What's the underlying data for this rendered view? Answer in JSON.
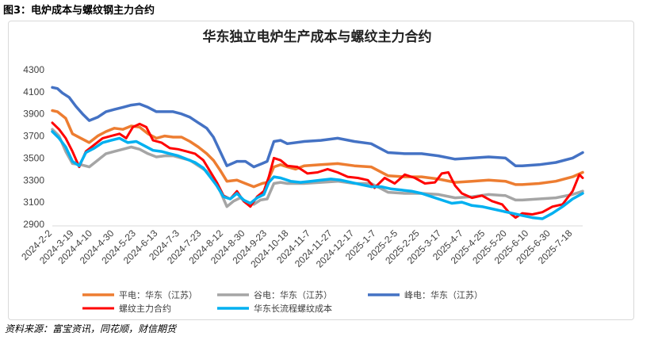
{
  "figure": {
    "caption": "图3：电炉成本与螺纹钢主力合约",
    "source": "资料来源：富宝资讯，同花顺，财信期货"
  },
  "chart_data": {
    "type": "line",
    "title": "华东独立电炉生产成本与螺纹主力合约",
    "xlabel": "",
    "ylabel": "",
    "ylim": [
      2900,
      4300
    ],
    "yticks": [
      2900,
      3100,
      3300,
      3500,
      3700,
      3900,
      4100,
      4300
    ],
    "grid": false,
    "legend_position": "bottom",
    "x_tick_labels": [
      "2024-2-2",
      "2024-3-19",
      "2024-4-10",
      "2024-4-30",
      "2024-5-23",
      "2024-6-13",
      "2024-7-3",
      "2024-7-23",
      "2024-8-12",
      "2024-8-30",
      "2024-9-23",
      "2024-10-18",
      "2024-11-7",
      "2024-11-27",
      "2024-12-17",
      "2025-1-7",
      "2025-2-5",
      "2025-2-25",
      "2025-3-17",
      "2025-4-7",
      "2025-4-25",
      "2025-5-20",
      "2025-6-10",
      "2025-6-30",
      "2025-7-18"
    ],
    "x_tick_index": [
      0,
      13,
      24,
      37,
      50,
      63,
      76,
      89,
      102,
      115,
      128,
      141,
      154,
      167,
      180,
      193,
      206,
      219,
      232,
      245,
      258,
      271,
      284,
      297,
      310
    ],
    "x_count": 317,
    "series": [
      {
        "name": "平电：华东（江苏）",
        "color": "#ed7d31",
        "width": 3.5,
        "points": [
          [
            0,
            3930
          ],
          [
            3,
            3920
          ],
          [
            8,
            3860
          ],
          [
            12,
            3720
          ],
          [
            17,
            3680
          ],
          [
            22,
            3640
          ],
          [
            27,
            3700
          ],
          [
            32,
            3740
          ],
          [
            37,
            3770
          ],
          [
            42,
            3760
          ],
          [
            47,
            3790
          ],
          [
            52,
            3780
          ],
          [
            57,
            3720
          ],
          [
            62,
            3680
          ],
          [
            67,
            3700
          ],
          [
            72,
            3690
          ],
          [
            77,
            3690
          ],
          [
            82,
            3650
          ],
          [
            87,
            3600
          ],
          [
            92,
            3540
          ],
          [
            96,
            3480
          ],
          [
            100,
            3390
          ],
          [
            104,
            3290
          ],
          [
            110,
            3300
          ],
          [
            115,
            3270
          ],
          [
            120,
            3240
          ],
          [
            125,
            3270
          ],
          [
            128,
            3280
          ],
          [
            132,
            3420
          ],
          [
            136,
            3440
          ],
          [
            140,
            3420
          ],
          [
            145,
            3400
          ],
          [
            150,
            3430
          ],
          [
            160,
            3440
          ],
          [
            170,
            3450
          ],
          [
            180,
            3430
          ],
          [
            190,
            3420
          ],
          [
            200,
            3340
          ],
          [
            210,
            3330
          ],
          [
            220,
            3330
          ],
          [
            230,
            3310
          ],
          [
            240,
            3280
          ],
          [
            250,
            3290
          ],
          [
            260,
            3300
          ],
          [
            270,
            3290
          ],
          [
            276,
            3260
          ],
          [
            280,
            3260
          ],
          [
            290,
            3270
          ],
          [
            300,
            3290
          ],
          [
            310,
            3330
          ],
          [
            316,
            3370
          ]
        ]
      },
      {
        "name": "谷电：华东（江苏）",
        "color": "#a5a5a5",
        "width": 3.5,
        "points": [
          [
            0,
            3760
          ],
          [
            4,
            3700
          ],
          [
            8,
            3560
          ],
          [
            12,
            3450
          ],
          [
            17,
            3440
          ],
          [
            22,
            3420
          ],
          [
            27,
            3480
          ],
          [
            32,
            3540
          ],
          [
            37,
            3560
          ],
          [
            42,
            3580
          ],
          [
            47,
            3600
          ],
          [
            52,
            3580
          ],
          [
            57,
            3540
          ],
          [
            62,
            3510
          ],
          [
            67,
            3520
          ],
          [
            72,
            3520
          ],
          [
            77,
            3500
          ],
          [
            82,
            3480
          ],
          [
            87,
            3430
          ],
          [
            92,
            3380
          ],
          [
            96,
            3300
          ],
          [
            100,
            3200
          ],
          [
            104,
            3060
          ],
          [
            108,
            3110
          ],
          [
            112,
            3140
          ],
          [
            116,
            3100
          ],
          [
            120,
            3080
          ],
          [
            124,
            3120
          ],
          [
            128,
            3130
          ],
          [
            132,
            3270
          ],
          [
            136,
            3280
          ],
          [
            140,
            3270
          ],
          [
            150,
            3270
          ],
          [
            160,
            3280
          ],
          [
            170,
            3290
          ],
          [
            180,
            3270
          ],
          [
            190,
            3270
          ],
          [
            200,
            3190
          ],
          [
            210,
            3180
          ],
          [
            220,
            3180
          ],
          [
            230,
            3170
          ],
          [
            240,
            3140
          ],
          [
            250,
            3150
          ],
          [
            260,
            3170
          ],
          [
            270,
            3160
          ],
          [
            276,
            3120
          ],
          [
            280,
            3120
          ],
          [
            290,
            3130
          ],
          [
            300,
            3140
          ],
          [
            310,
            3170
          ],
          [
            316,
            3200
          ]
        ]
      },
      {
        "name": "峰电：华东（江苏）",
        "color": "#4472c4",
        "width": 3.5,
        "points": [
          [
            0,
            4140
          ],
          [
            3,
            4130
          ],
          [
            6,
            4090
          ],
          [
            10,
            4050
          ],
          [
            14,
            3970
          ],
          [
            18,
            3900
          ],
          [
            22,
            3840
          ],
          [
            27,
            3870
          ],
          [
            32,
            3920
          ],
          [
            37,
            3940
          ],
          [
            42,
            3960
          ],
          [
            47,
            3980
          ],
          [
            52,
            3990
          ],
          [
            57,
            3960
          ],
          [
            62,
            3920
          ],
          [
            67,
            3920
          ],
          [
            72,
            3920
          ],
          [
            77,
            3900
          ],
          [
            82,
            3870
          ],
          [
            87,
            3820
          ],
          [
            92,
            3770
          ],
          [
            96,
            3690
          ],
          [
            100,
            3560
          ],
          [
            104,
            3430
          ],
          [
            110,
            3470
          ],
          [
            115,
            3470
          ],
          [
            120,
            3420
          ],
          [
            125,
            3450
          ],
          [
            128,
            3470
          ],
          [
            132,
            3650
          ],
          [
            136,
            3660
          ],
          [
            140,
            3630
          ],
          [
            150,
            3650
          ],
          [
            160,
            3660
          ],
          [
            170,
            3680
          ],
          [
            180,
            3650
          ],
          [
            190,
            3630
          ],
          [
            200,
            3550
          ],
          [
            210,
            3540
          ],
          [
            220,
            3540
          ],
          [
            230,
            3520
          ],
          [
            240,
            3490
          ],
          [
            250,
            3500
          ],
          [
            260,
            3510
          ],
          [
            270,
            3500
          ],
          [
            276,
            3430
          ],
          [
            280,
            3430
          ],
          [
            290,
            3440
          ],
          [
            300,
            3460
          ],
          [
            310,
            3500
          ],
          [
            316,
            3550
          ]
        ]
      },
      {
        "name": "螺纹主力合约",
        "color": "#ff0000",
        "width": 3,
        "points": [
          [
            0,
            3820
          ],
          [
            4,
            3760
          ],
          [
            8,
            3680
          ],
          [
            12,
            3560
          ],
          [
            16,
            3420
          ],
          [
            20,
            3560
          ],
          [
            25,
            3620
          ],
          [
            30,
            3680
          ],
          [
            35,
            3700
          ],
          [
            40,
            3720
          ],
          [
            44,
            3680
          ],
          [
            48,
            3780
          ],
          [
            52,
            3810
          ],
          [
            56,
            3780
          ],
          [
            60,
            3660
          ],
          [
            65,
            3640
          ],
          [
            70,
            3590
          ],
          [
            75,
            3580
          ],
          [
            80,
            3560
          ],
          [
            85,
            3540
          ],
          [
            90,
            3480
          ],
          [
            94,
            3380
          ],
          [
            98,
            3280
          ],
          [
            102,
            3160
          ],
          [
            106,
            3130
          ],
          [
            110,
            3200
          ],
          [
            114,
            3110
          ],
          [
            118,
            3060
          ],
          [
            122,
            3150
          ],
          [
            126,
            3200
          ],
          [
            129,
            3330
          ],
          [
            132,
            3500
          ],
          [
            136,
            3480
          ],
          [
            140,
            3430
          ],
          [
            146,
            3420
          ],
          [
            152,
            3360
          ],
          [
            158,
            3370
          ],
          [
            164,
            3400
          ],
          [
            170,
            3370
          ],
          [
            176,
            3330
          ],
          [
            182,
            3320
          ],
          [
            188,
            3300
          ],
          [
            192,
            3230
          ],
          [
            198,
            3320
          ],
          [
            204,
            3270
          ],
          [
            210,
            3350
          ],
          [
            216,
            3320
          ],
          [
            222,
            3270
          ],
          [
            228,
            3280
          ],
          [
            232,
            3360
          ],
          [
            236,
            3370
          ],
          [
            240,
            3250
          ],
          [
            244,
            3180
          ],
          [
            250,
            3140
          ],
          [
            256,
            3160
          ],
          [
            262,
            3110
          ],
          [
            268,
            3080
          ],
          [
            272,
            3010
          ],
          [
            276,
            2960
          ],
          [
            280,
            3000
          ],
          [
            286,
            2990
          ],
          [
            292,
            3010
          ],
          [
            298,
            3060
          ],
          [
            304,
            3080
          ],
          [
            310,
            3200
          ],
          [
            314,
            3350
          ],
          [
            316,
            3320
          ]
        ]
      },
      {
        "name": "华东长流程螺纹成本",
        "color": "#00b0f0",
        "width": 3.5,
        "points": [
          [
            0,
            3740
          ],
          [
            4,
            3680
          ],
          [
            8,
            3600
          ],
          [
            12,
            3470
          ],
          [
            16,
            3430
          ],
          [
            20,
            3550
          ],
          [
            25,
            3590
          ],
          [
            30,
            3640
          ],
          [
            35,
            3660
          ],
          [
            40,
            3680
          ],
          [
            45,
            3640
          ],
          [
            50,
            3650
          ],
          [
            55,
            3610
          ],
          [
            60,
            3570
          ],
          [
            65,
            3560
          ],
          [
            70,
            3540
          ],
          [
            75,
            3520
          ],
          [
            80,
            3490
          ],
          [
            85,
            3460
          ],
          [
            90,
            3410
          ],
          [
            94,
            3330
          ],
          [
            98,
            3250
          ],
          [
            102,
            3150
          ],
          [
            106,
            3130
          ],
          [
            110,
            3180
          ],
          [
            114,
            3120
          ],
          [
            118,
            3090
          ],
          [
            122,
            3140
          ],
          [
            126,
            3170
          ],
          [
            129,
            3280
          ],
          [
            132,
            3330
          ],
          [
            136,
            3320
          ],
          [
            142,
            3290
          ],
          [
            148,
            3280
          ],
          [
            154,
            3290
          ],
          [
            160,
            3300
          ],
          [
            166,
            3310
          ],
          [
            172,
            3300
          ],
          [
            178,
            3280
          ],
          [
            184,
            3260
          ],
          [
            190,
            3240
          ],
          [
            196,
            3240
          ],
          [
            202,
            3220
          ],
          [
            208,
            3210
          ],
          [
            214,
            3200
          ],
          [
            220,
            3180
          ],
          [
            226,
            3150
          ],
          [
            232,
            3120
          ],
          [
            238,
            3090
          ],
          [
            244,
            3100
          ],
          [
            250,
            3070
          ],
          [
            256,
            3060
          ],
          [
            262,
            3040
          ],
          [
            268,
            3020
          ],
          [
            274,
            3000
          ],
          [
            280,
            2980
          ],
          [
            286,
            2960
          ],
          [
            292,
            2950
          ],
          [
            298,
            3000
          ],
          [
            304,
            3060
          ],
          [
            310,
            3130
          ],
          [
            316,
            3180
          ]
        ]
      }
    ]
  }
}
